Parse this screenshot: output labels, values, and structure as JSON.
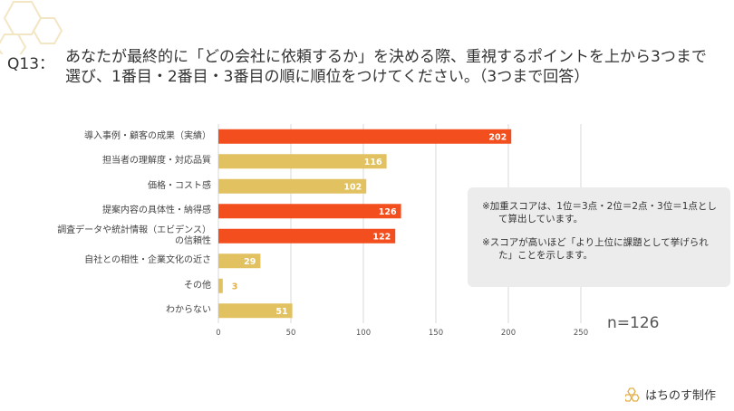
{
  "question": {
    "label": "Q13：",
    "text": "あなたが最終的に「どの会社に依頼するか」を決める際、重視するポイントを上から3つまで選び、1番目・2番目・3番目の順に順位をつけてください。（3つまで回答）"
  },
  "chart_data": {
    "type": "bar",
    "orientation": "horizontal",
    "categories": [
      "導入事例・顧客の成果（実績）",
      "担当者の理解度・対応品質",
      "価格・コスト感",
      "提案内容の具体性・納得感",
      "調査データや統計情報（エビデンス）の信頼性",
      "自社との相性・企業文化の近さ",
      "その他",
      "わからない"
    ],
    "category_lines": [
      [
        "導入事例・顧客の成果（実績）"
      ],
      [
        "担当者の理解度・対応品質"
      ],
      [
        "価格・コスト感"
      ],
      [
        "提案内容の具体性・納得感"
      ],
      [
        "調査データや統計情報（エビデンス）",
        "の信頼性"
      ],
      [
        "自社との相性・企業文化の近さ"
      ],
      [
        "その他"
      ],
      [
        "わからない"
      ]
    ],
    "values": [
      202,
      116,
      102,
      126,
      122,
      29,
      3,
      51
    ],
    "highlight": [
      true,
      false,
      false,
      true,
      true,
      false,
      false,
      false
    ],
    "xlim": [
      0,
      250
    ],
    "xticks": [
      0,
      50,
      100,
      150,
      200,
      250
    ],
    "grid": true,
    "title": "",
    "xlabel": "",
    "ylabel": ""
  },
  "colors": {
    "highlight": "#f24e1e",
    "normal": "#e2c160",
    "grid": "#d9d9d9",
    "value_inside": "#ffffff",
    "value_outside": "#e2b04a"
  },
  "note": {
    "line1": "※加重スコアは、1位＝3点・2位＝2点・3位＝1点として算出しています。",
    "line2": "※スコアが高いほど「より上位に課題として挙げられた」ことを示します。"
  },
  "sample": "n=126",
  "brand": {
    "icon": "hexagon-logo-icon",
    "name": "はちのす制作"
  }
}
